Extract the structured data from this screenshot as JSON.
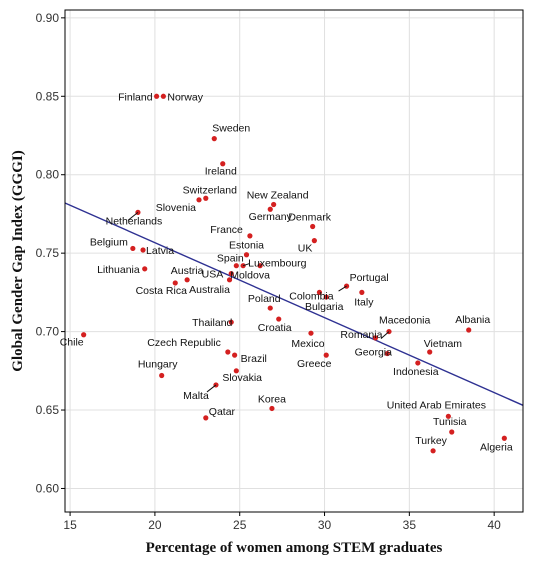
{
  "chart_data": {
    "type": "scatter",
    "title": "",
    "xlabel": "Percentage of  women among STEM graduates",
    "ylabel": "Global Gender Gap Index (GGGI)",
    "xlim": [
      14.7,
      41.7
    ],
    "ylim": [
      0.585,
      0.905
    ],
    "x_ticks": [
      15,
      20,
      25,
      30,
      35,
      40
    ],
    "y_ticks": [
      0.6,
      0.65,
      0.7,
      0.75,
      0.8,
      0.85,
      0.9
    ],
    "x_tick_labels": [
      "15",
      "20",
      "25",
      "30",
      "35",
      "40"
    ],
    "y_tick_labels": [
      "0.60",
      "0.65",
      "0.70",
      "0.75",
      "0.80",
      "0.85",
      "0.90"
    ],
    "grid": true,
    "colors": {
      "point": "#d42020",
      "trend": "#2e3192",
      "grid": "#e0e0e0",
      "axis": "#000000"
    },
    "trendline": {
      "x": [
        14.7,
        41.7
      ],
      "y": [
        0.782,
        0.653
      ]
    },
    "points": [
      {
        "label": "Finland",
        "x": 20.1,
        "y": 0.85
      },
      {
        "label": "Norway",
        "x": 20.5,
        "y": 0.85
      },
      {
        "label": "Sweden",
        "x": 23.5,
        "y": 0.823
      },
      {
        "label": "Ireland",
        "x": 24.0,
        "y": 0.807
      },
      {
        "label": "Switzerland",
        "x": 23.0,
        "y": 0.785
      },
      {
        "label": "Slovenia",
        "x": 22.6,
        "y": 0.784
      },
      {
        "label": "Netherlands",
        "x": 19.0,
        "y": 0.776
      },
      {
        "label": "New Zealand",
        "x": 27.0,
        "y": 0.781
      },
      {
        "label": "Germany",
        "x": 26.8,
        "y": 0.778
      },
      {
        "label": "Denmark",
        "x": 29.3,
        "y": 0.767
      },
      {
        "label": "UK",
        "x": 29.4,
        "y": 0.758
      },
      {
        "label": "France",
        "x": 25.6,
        "y": 0.761
      },
      {
        "label": "Estonia",
        "x": 25.4,
        "y": 0.749
      },
      {
        "label": "Belgium",
        "x": 18.7,
        "y": 0.753
      },
      {
        "label": "Latvia",
        "x": 19.3,
        "y": 0.752
      },
      {
        "label": "Lithuania",
        "x": 19.4,
        "y": 0.74
      },
      {
        "label": "Spain",
        "x": 24.8,
        "y": 0.742
      },
      {
        "label": "Luxembourg",
        "x": 25.2,
        "y": 0.742
      },
      {
        "label": "USA",
        "x": 24.5,
        "y": 0.737
      },
      {
        "label": "Moldova",
        "x": 26.2,
        "y": 0.742
      },
      {
        "label": "Austria",
        "x": 21.9,
        "y": 0.733
      },
      {
        "label": "Costa Rica",
        "x": 21.2,
        "y": 0.731
      },
      {
        "label": "Australia",
        "x": 24.4,
        "y": 0.733
      },
      {
        "label": "Portugal",
        "x": 31.3,
        "y": 0.729
      },
      {
        "label": "Colombia",
        "x": 29.7,
        "y": 0.725
      },
      {
        "label": "Italy",
        "x": 32.2,
        "y": 0.725
      },
      {
        "label": "Bulgaria",
        "x": 30.1,
        "y": 0.722
      },
      {
        "label": "Poland",
        "x": 26.8,
        "y": 0.715
      },
      {
        "label": "Croatia",
        "x": 27.3,
        "y": 0.708
      },
      {
        "label": "Macedonia",
        "x": 33.8,
        "y": 0.7
      },
      {
        "label": "Albania",
        "x": 38.5,
        "y": 0.701
      },
      {
        "label": "Thailand",
        "x": 24.5,
        "y": 0.706
      },
      {
        "label": "Romania",
        "x": 33.0,
        "y": 0.696
      },
      {
        "label": "Mexico",
        "x": 29.2,
        "y": 0.699
      },
      {
        "label": "Czech Republic",
        "x": 24.3,
        "y": 0.687
      },
      {
        "label": "Brazil",
        "x": 24.7,
        "y": 0.685
      },
      {
        "label": "Greece",
        "x": 30.1,
        "y": 0.685
      },
      {
        "label": "Vietnam",
        "x": 36.2,
        "y": 0.687
      },
      {
        "label": "Georgia",
        "x": 33.7,
        "y": 0.686
      },
      {
        "label": "Indonesia",
        "x": 35.5,
        "y": 0.68
      },
      {
        "label": "Chile",
        "x": 15.8,
        "y": 0.698
      },
      {
        "label": "Hungary",
        "x": 20.4,
        "y": 0.672
      },
      {
        "label": "Slovakia",
        "x": 24.8,
        "y": 0.675
      },
      {
        "label": "Malta",
        "x": 23.6,
        "y": 0.666
      },
      {
        "label": "Korea",
        "x": 26.9,
        "y": 0.651
      },
      {
        "label": "Qatar",
        "x": 23.0,
        "y": 0.645
      },
      {
        "label": "United Arab Emirates",
        "x": 37.3,
        "y": 0.646
      },
      {
        "label": "Tunisia",
        "x": 37.5,
        "y": 0.636
      },
      {
        "label": "Turkey",
        "x": 36.4,
        "y": 0.624
      },
      {
        "label": "Algeria",
        "x": 40.6,
        "y": 0.632
      }
    ]
  }
}
